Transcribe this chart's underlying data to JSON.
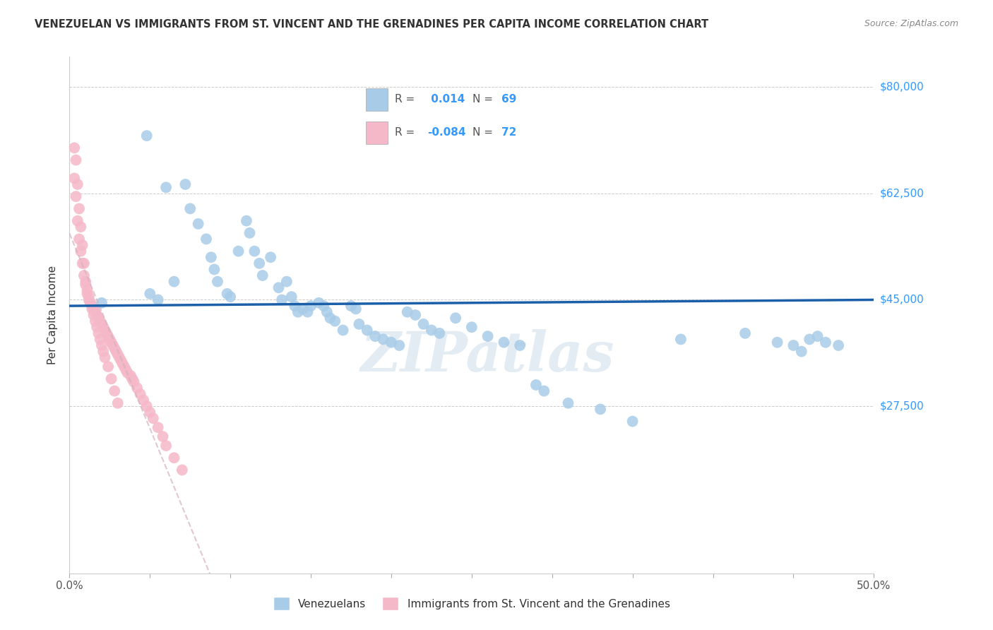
{
  "title": "VENEZUELAN VS IMMIGRANTS FROM ST. VINCENT AND THE GRENADINES PER CAPITA INCOME CORRELATION CHART",
  "source": "Source: ZipAtlas.com",
  "ylabel": "Per Capita Income",
  "y_ticks": [
    0,
    27500,
    45000,
    62500,
    80000
  ],
  "y_tick_labels": [
    "",
    "$27,500",
    "$45,000",
    "$62,500",
    "$80,000"
  ],
  "x_min": 0.0,
  "x_max": 0.5,
  "y_min": 0,
  "y_max": 85000,
  "blue_color": "#a8cce8",
  "pink_color": "#f5b8c8",
  "line_blue": "#1a5fa8",
  "line_pink_dash": "#d4b0bc",
  "watermark": "ZIPatlas",
  "venezuelan_x": [
    0.02,
    0.048,
    0.06,
    0.072,
    0.075,
    0.08,
    0.085,
    0.088,
    0.09,
    0.092,
    0.098,
    0.1,
    0.105,
    0.11,
    0.112,
    0.115,
    0.118,
    0.12,
    0.125,
    0.13,
    0.132,
    0.135,
    0.138,
    0.14,
    0.142,
    0.145,
    0.148,
    0.15,
    0.155,
    0.158,
    0.16,
    0.162,
    0.165,
    0.17,
    0.175,
    0.178,
    0.18,
    0.185,
    0.19,
    0.195,
    0.2,
    0.205,
    0.21,
    0.215,
    0.22,
    0.225,
    0.23,
    0.24,
    0.25,
    0.26,
    0.27,
    0.28,
    0.29,
    0.295,
    0.31,
    0.33,
    0.35,
    0.38,
    0.42,
    0.44,
    0.45,
    0.455,
    0.46,
    0.465,
    0.47,
    0.478,
    0.05,
    0.055,
    0.065
  ],
  "venezuelan_y": [
    44500,
    72000,
    63500,
    64000,
    60000,
    57500,
    55000,
    52000,
    50000,
    48000,
    46000,
    45500,
    53000,
    58000,
    56000,
    53000,
    51000,
    49000,
    52000,
    47000,
    45000,
    48000,
    45500,
    44000,
    43000,
    43500,
    43000,
    44000,
    44500,
    44000,
    43000,
    42000,
    41500,
    40000,
    44000,
    43500,
    41000,
    40000,
    39000,
    38500,
    38000,
    37500,
    43000,
    42500,
    41000,
    40000,
    39500,
    42000,
    40500,
    39000,
    38000,
    37500,
    31000,
    30000,
    28000,
    27000,
    25000,
    38500,
    39500,
    38000,
    37500,
    36500,
    38500,
    39000,
    38000,
    37500,
    46000,
    45000,
    48000
  ],
  "svg_x": [
    0.004,
    0.005,
    0.006,
    0.007,
    0.008,
    0.009,
    0.01,
    0.011,
    0.012,
    0.013,
    0.014,
    0.015,
    0.016,
    0.017,
    0.018,
    0.019,
    0.02,
    0.021,
    0.022,
    0.023,
    0.024,
    0.025,
    0.026,
    0.027,
    0.028,
    0.029,
    0.03,
    0.031,
    0.032,
    0.033,
    0.034,
    0.035,
    0.036,
    0.038,
    0.039,
    0.04,
    0.042,
    0.044,
    0.046,
    0.048,
    0.05,
    0.052,
    0.055,
    0.058,
    0.06,
    0.065,
    0.07,
    0.003,
    0.003,
    0.004,
    0.005,
    0.006,
    0.007,
    0.008,
    0.009,
    0.01,
    0.011,
    0.012,
    0.013,
    0.014,
    0.015,
    0.016,
    0.017,
    0.018,
    0.019,
    0.02,
    0.021,
    0.022,
    0.024,
    0.026,
    0.028,
    0.03
  ],
  "svg_y": [
    68000,
    64000,
    60000,
    57000,
    54000,
    51000,
    48000,
    46000,
    45000,
    44500,
    44000,
    43500,
    43000,
    42500,
    42000,
    41500,
    41000,
    40500,
    40000,
    39500,
    39000,
    38500,
    38000,
    37500,
    37000,
    36500,
    36000,
    35500,
    35000,
    34500,
    34000,
    33500,
    33000,
    32500,
    32000,
    31500,
    30500,
    29500,
    28500,
    27500,
    26500,
    25500,
    24000,
    22500,
    21000,
    19000,
    17000,
    70000,
    65000,
    62000,
    58000,
    55000,
    53000,
    51000,
    49000,
    47500,
    46500,
    45500,
    44500,
    43500,
    42500,
    41500,
    40500,
    39500,
    38500,
    37500,
    36500,
    35500,
    34000,
    32000,
    30000,
    28000
  ]
}
